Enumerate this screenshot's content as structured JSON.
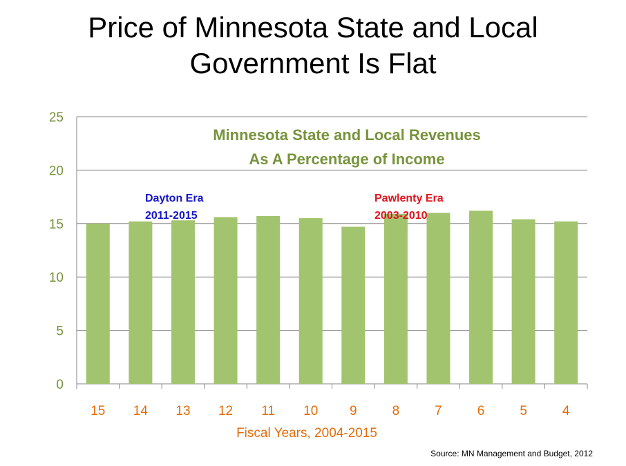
{
  "slide": {
    "title_line1": "Price of Minnesota State and Local",
    "title_line2": "Government Is Flat",
    "source": "Source:  MN Management and Budget, 2012"
  },
  "chart_data": {
    "type": "bar",
    "title_line1": "Minnesota State and Local Revenues",
    "title_line2": "As A Percentage of Income",
    "categories": [
      "15",
      "14",
      "13",
      "12",
      "11",
      "10",
      "9",
      "8",
      "7",
      "6",
      "5",
      "4"
    ],
    "values": [
      15.0,
      15.2,
      15.3,
      15.6,
      15.7,
      15.5,
      14.7,
      15.9,
      16.0,
      16.2,
      15.4,
      15.2
    ],
    "xlabel": "Fiscal Years, 2004-2015",
    "ylabel": "",
    "ylim": [
      0,
      25
    ],
    "yticks": [
      0,
      5,
      10,
      15,
      20,
      25
    ],
    "grid": true,
    "annotations": [
      {
        "line1": "Dayton Era",
        "line2": "2011-2015",
        "color": "#1515c8"
      },
      {
        "line1": "Pawlenty Era",
        "line2": "2003-2010",
        "color": "#e0141e"
      }
    ],
    "colors": {
      "bar": "#a3c46e",
      "title": "#77933c",
      "axis_text": "#e36c09",
      "tick_y": "#77933c",
      "grid": "#868686"
    }
  }
}
